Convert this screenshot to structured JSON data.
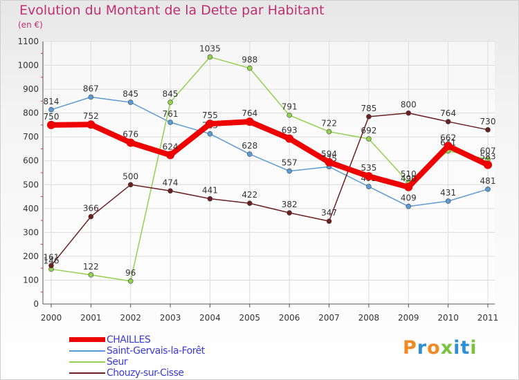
{
  "header": {
    "title": "Evolution du Montant de la Dette par Habitant",
    "subtitle": "(en €)"
  },
  "logo": {
    "letters": [
      "P",
      "r",
      "o",
      "x",
      "i",
      "t",
      "i"
    ],
    "colors": [
      "#f08a24",
      "#2e8fd6",
      "#f08a24",
      "#7cc142",
      "#2e8fd6",
      "#2e8fd6",
      "#7cc142"
    ]
  },
  "chart_data": {
    "type": "line",
    "title": "Evolution du Montant de la Dette par Habitant",
    "subtitle": "(en €)",
    "x": [
      "2000",
      "2001",
      "2002",
      "2003",
      "2004",
      "2005",
      "2006",
      "2007",
      "2008",
      "2009",
      "2010",
      "2011"
    ],
    "ylim": [
      0,
      1100
    ],
    "yticks": [
      0,
      100,
      200,
      300,
      400,
      500,
      600,
      700,
      800,
      900,
      1000,
      1100
    ],
    "grid": true,
    "legend_position": "bottom-left",
    "series": [
      {
        "name": "CHAILLES",
        "color": "#ee0000",
        "values": [
          750,
          752,
          676,
          624,
          755,
          764,
          693,
          594,
          535,
          490,
          662,
          583
        ]
      },
      {
        "name": "Saint-Gervais-la-Forêt",
        "color": "#5b9bd5",
        "values": [
          814,
          867,
          845,
          761,
          713,
          628,
          557,
          575,
          492,
          409,
          431,
          481
        ]
      },
      {
        "name": "Seur",
        "color": "#92d050",
        "values": [
          146,
          122,
          96,
          845,
          1035,
          988,
          791,
          722,
          692,
          510,
          641,
          607
        ]
      },
      {
        "name": "Chouzy-sur-Cisse",
        "color": "#6b2020",
        "values": [
          161,
          366,
          500,
          474,
          441,
          422,
          382,
          347,
          785,
          800,
          764,
          730
        ]
      }
    ]
  }
}
